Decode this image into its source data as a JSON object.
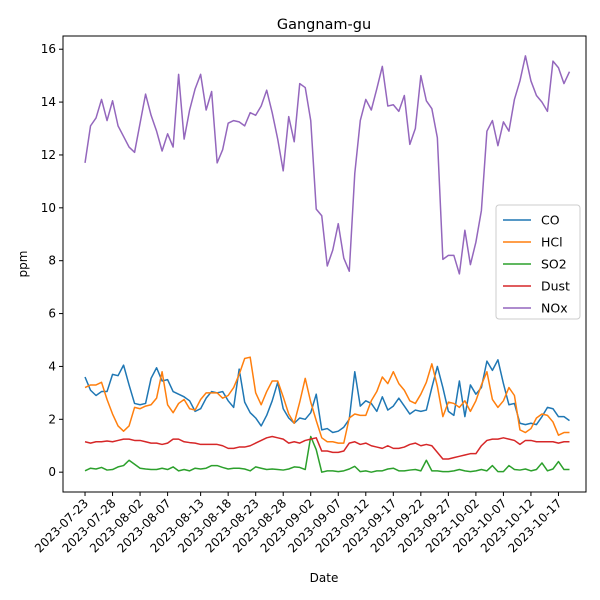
{
  "chart_data": {
    "type": "line",
    "title": "Gangnam-gu",
    "xlabel": "Date",
    "ylabel": "ppm",
    "xlim": [
      "2023-07-19",
      "2023-10-22"
    ],
    "ylim": [
      -0.75,
      16.5
    ],
    "yticks": [
      0,
      2,
      4,
      6,
      8,
      10,
      12,
      14,
      16
    ],
    "xticks": [
      "2023-07-23",
      "2023-07-28",
      "2023-08-02",
      "2023-08-07",
      "2023-08-13",
      "2023-08-18",
      "2023-08-23",
      "2023-08-28",
      "2023-09-02",
      "2023-09-07",
      "2023-09-12",
      "2023-09-17",
      "2023-09-22",
      "2023-09-27",
      "2023-10-02",
      "2023-10-07",
      "2023-10-12",
      "2023-10-17"
    ],
    "legend_position": "right",
    "grid": false,
    "x_start": "2023-07-23",
    "series": [
      {
        "name": "CO",
        "color": "#1f77b4",
        "values": [
          3.6,
          3.1,
          2.9,
          3.05,
          3.05,
          3.7,
          3.65,
          4.05,
          3.3,
          2.6,
          2.55,
          2.6,
          3.55,
          3.95,
          3.45,
          3.5,
          3.05,
          2.95,
          2.85,
          2.7,
          2.3,
          2.4,
          2.8,
          3.05,
          3.0,
          3.05,
          2.7,
          2.45,
          3.9,
          2.65,
          2.25,
          2.05,
          1.75,
          2.15,
          2.7,
          3.4,
          2.4,
          2.05,
          1.85,
          2.05,
          2.0,
          2.25,
          2.95,
          1.6,
          1.65,
          1.5,
          1.55,
          1.7,
          2.0,
          3.8,
          2.5,
          2.7,
          2.6,
          2.3,
          2.85,
          2.35,
          2.5,
          2.8,
          2.5,
          2.2,
          2.35,
          2.3,
          2.35,
          3.2,
          4.0,
          3.2,
          2.3,
          2.15,
          3.45,
          2.1,
          3.3,
          2.95,
          3.2,
          4.2,
          3.85,
          4.25,
          3.35,
          2.55,
          2.6,
          1.85,
          1.8,
          1.85,
          1.8,
          2.1,
          2.45,
          2.4,
          2.1,
          2.1,
          1.95
        ]
      },
      {
        "name": "HCl",
        "color": "#ff7f0e",
        "values": [
          3.2,
          3.3,
          3.3,
          3.4,
          2.75,
          2.2,
          1.75,
          1.55,
          1.75,
          2.45,
          2.4,
          2.5,
          2.55,
          2.8,
          3.8,
          2.55,
          2.25,
          2.6,
          2.75,
          2.4,
          2.35,
          2.75,
          3.0,
          3.0,
          3.0,
          2.8,
          2.9,
          3.2,
          3.7,
          4.3,
          4.35,
          3.0,
          2.55,
          3.05,
          3.45,
          3.45,
          2.85,
          2.2,
          1.85,
          2.65,
          3.55,
          2.65,
          1.95,
          1.3,
          1.15,
          1.15,
          1.1,
          1.1,
          2.05,
          2.2,
          2.15,
          2.15,
          2.7,
          3.05,
          3.6,
          3.35,
          3.8,
          3.35,
          3.1,
          2.7,
          2.6,
          2.95,
          3.4,
          4.1,
          3.25,
          2.1,
          2.65,
          2.6,
          2.45,
          2.7,
          2.3,
          2.7,
          3.3,
          3.8,
          2.75,
          2.45,
          2.7,
          3.2,
          2.9,
          1.6,
          1.5,
          1.65,
          2.05,
          2.2,
          2.15,
          1.9,
          1.4,
          1.5,
          1.5
        ]
      },
      {
        "name": "SO2",
        "color": "#2ca02c",
        "values": [
          0.05,
          0.15,
          0.12,
          0.18,
          0.08,
          0.1,
          0.2,
          0.25,
          0.45,
          0.3,
          0.15,
          0.12,
          0.1,
          0.1,
          0.15,
          0.1,
          0.2,
          0.05,
          0.1,
          0.05,
          0.15,
          0.12,
          0.15,
          0.25,
          0.25,
          0.18,
          0.12,
          0.15,
          0.15,
          0.12,
          0.05,
          0.2,
          0.15,
          0.1,
          0.12,
          0.1,
          0.08,
          0.12,
          0.2,
          0.18,
          0.1,
          1.35,
          0.85,
          0.0,
          0.05,
          0.05,
          0.02,
          0.05,
          0.12,
          0.22,
          0.02,
          0.05,
          0.0,
          0.05,
          0.05,
          0.12,
          0.15,
          0.05,
          0.05,
          0.08,
          0.1,
          0.05,
          0.45,
          0.05,
          0.05,
          0.02,
          0.02,
          0.05,
          0.1,
          0.05,
          0.02,
          0.05,
          0.1,
          0.05,
          0.25,
          0.02,
          0.02,
          0.25,
          0.1,
          0.08,
          0.12,
          0.05,
          0.1,
          0.35,
          0.05,
          0.12,
          0.4,
          0.1,
          0.1
        ]
      },
      {
        "name": "Dust",
        "color": "#d62728",
        "values": [
          1.15,
          1.1,
          1.15,
          1.15,
          1.18,
          1.15,
          1.2,
          1.25,
          1.25,
          1.2,
          1.2,
          1.15,
          1.1,
          1.1,
          1.05,
          1.1,
          1.25,
          1.25,
          1.15,
          1.12,
          1.1,
          1.05,
          1.05,
          1.05,
          1.05,
          1.0,
          0.9,
          0.9,
          0.95,
          0.95,
          1.0,
          1.1,
          1.2,
          1.3,
          1.35,
          1.3,
          1.25,
          1.1,
          1.15,
          1.1,
          1.2,
          1.25,
          1.3,
          0.8,
          0.8,
          0.75,
          0.75,
          0.8,
          1.1,
          1.15,
          1.05,
          1.1,
          1.0,
          0.95,
          0.9,
          1.0,
          0.9,
          0.9,
          0.95,
          1.05,
          1.1,
          1.0,
          1.05,
          1.0,
          0.75,
          0.5,
          0.5,
          0.55,
          0.6,
          0.65,
          0.7,
          0.7,
          1.0,
          1.2,
          1.25,
          1.25,
          1.3,
          1.25,
          1.2,
          1.05,
          1.2,
          1.2,
          1.15,
          1.15,
          1.15,
          1.15,
          1.1,
          1.15,
          1.15
        ]
      },
      {
        "name": "NOx",
        "color": "#9467bd",
        "values": [
          11.7,
          13.1,
          13.4,
          14.1,
          13.3,
          14.05,
          13.1,
          12.7,
          12.3,
          12.1,
          13.2,
          14.3,
          13.5,
          12.9,
          12.15,
          12.8,
          12.3,
          15.05,
          12.6,
          13.7,
          14.5,
          15.05,
          13.7,
          14.4,
          11.7,
          12.2,
          13.2,
          13.3,
          13.25,
          13.1,
          13.6,
          13.5,
          13.85,
          14.45,
          13.6,
          12.6,
          11.4,
          13.45,
          12.5,
          14.7,
          14.55,
          13.3,
          9.95,
          9.7,
          7.8,
          8.4,
          9.4,
          8.1,
          7.6,
          11.3,
          13.3,
          14.1,
          13.7,
          14.5,
          15.35,
          13.85,
          13.9,
          13.65,
          14.25,
          12.4,
          13.0,
          15.0,
          14.05,
          13.75,
          12.65,
          8.05,
          8.2,
          8.2,
          7.5,
          9.15,
          7.85,
          8.7,
          9.9,
          12.9,
          13.3,
          12.35,
          13.25,
          12.9,
          14.1,
          14.8,
          15.75,
          14.8,
          14.25,
          14.0,
          13.65,
          15.55,
          15.3,
          14.7,
          15.15
        ]
      }
    ]
  }
}
